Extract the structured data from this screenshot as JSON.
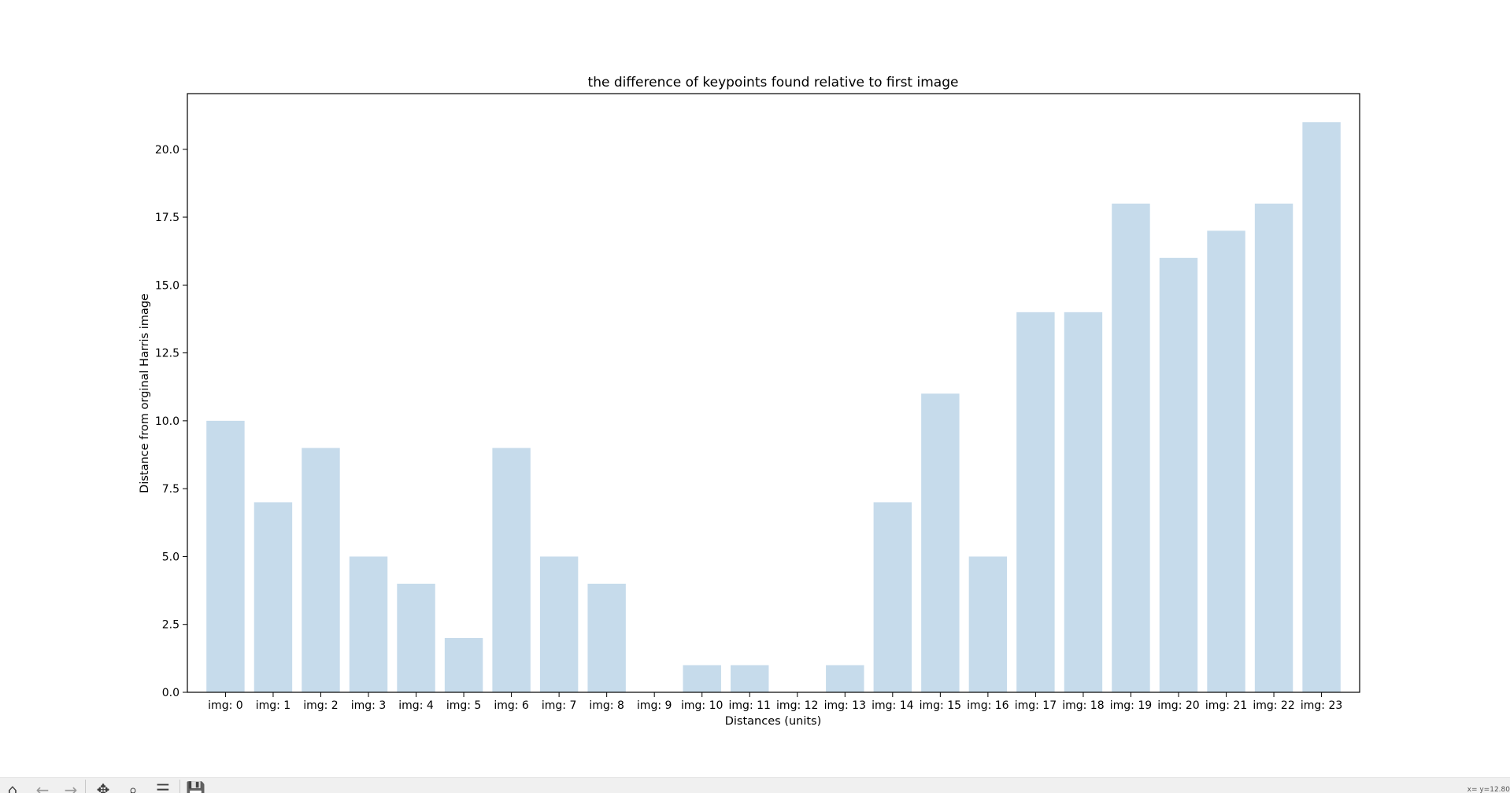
{
  "window": {
    "coord_readout": "x= y=12.80"
  },
  "toolbar": {
    "buttons": [
      {
        "name": "home-icon",
        "glyph": "⌂",
        "enabled": true
      },
      {
        "name": "back-icon",
        "glyph": "←",
        "enabled": false
      },
      {
        "name": "forward-icon",
        "glyph": "→",
        "enabled": false
      },
      {
        "name": "pan-icon",
        "glyph": "✥",
        "enabled": true
      },
      {
        "name": "zoom-icon",
        "glyph": "⌕",
        "enabled": true
      },
      {
        "name": "configure-subplots-icon",
        "glyph": "☰",
        "enabled": true
      },
      {
        "name": "save-icon",
        "glyph": "💾",
        "enabled": true
      }
    ]
  },
  "chart_data": {
    "type": "bar",
    "title": "the difference of keypoints found relative to first image",
    "xlabel": "Distances (units)",
    "ylabel": "Distance from orginal Harris image",
    "categories": [
      "img: 0",
      "img: 1",
      "img: 2",
      "img: 3",
      "img: 4",
      "img: 5",
      "img: 6",
      "img: 7",
      "img: 8",
      "img: 9",
      "img: 10",
      "img: 11",
      "img: 12",
      "img: 13",
      "img: 14",
      "img: 15",
      "img: 16",
      "img: 17",
      "img: 18",
      "img: 19",
      "img: 20",
      "img: 21",
      "img: 22",
      "img: 23"
    ],
    "values": [
      10,
      7,
      9,
      5,
      4,
      2,
      9,
      5,
      4,
      0,
      1,
      1,
      0,
      1,
      7,
      11,
      5,
      14,
      14,
      18,
      16,
      17,
      18,
      21
    ],
    "ylim": [
      0,
      22.05
    ],
    "yticks": [
      0.0,
      2.5,
      5.0,
      7.5,
      10.0,
      12.5,
      15.0,
      17.5,
      20.0
    ],
    "ytick_labels": [
      "0.0",
      "2.5",
      "5.0",
      "7.5",
      "10.0",
      "12.5",
      "15.0",
      "17.5",
      "20.0"
    ],
    "grid": false,
    "bar_color": "#c6dbeb"
  }
}
